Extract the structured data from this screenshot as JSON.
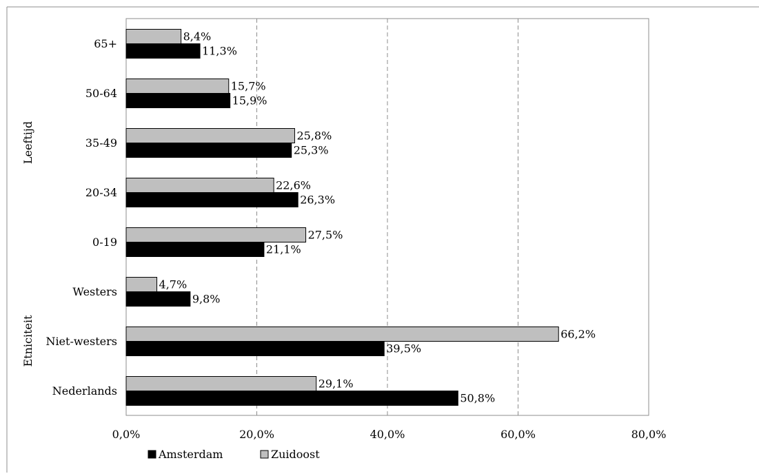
{
  "chart_data": {
    "type": "bar",
    "orientation": "horizontal",
    "groups": [
      {
        "label": "Leeftijd",
        "categories": [
          "65+",
          "50-64",
          "35-49",
          "20-34",
          "0-19"
        ]
      },
      {
        "label": "Etniciteit",
        "categories": [
          "Westers",
          "Niet-westers",
          "Nederlands"
        ]
      }
    ],
    "categories": [
      "65+",
      "50-64",
      "35-49",
      "20-34",
      "0-19",
      "Westers",
      "Niet-westers",
      "Nederlands"
    ],
    "series": [
      {
        "name": "Zuidoost",
        "color": "#bfbfbf",
        "values": [
          8.4,
          15.7,
          25.8,
          22.6,
          27.5,
          4.7,
          66.2,
          29.1
        ],
        "labels": [
          "8,4%",
          "15,7%",
          "25,8%",
          "22,6%",
          "27,5%",
          "4,7%",
          "66,2%",
          "29,1%"
        ]
      },
      {
        "name": "Amsterdam",
        "color": "#000000",
        "values": [
          11.3,
          15.9,
          25.3,
          26.3,
          21.1,
          9.8,
          39.5,
          50.8
        ],
        "labels": [
          "11,3%",
          "15,9%",
          "25,3%",
          "26,3%",
          "21,1%",
          "9,8%",
          "39,5%",
          "50,8%"
        ]
      }
    ],
    "xlim": [
      0,
      80
    ],
    "xticks": [
      0,
      20,
      40,
      60,
      80
    ],
    "xtick_labels": [
      "0,0%",
      "20,0%",
      "40,0%",
      "60,0%",
      "80,0%"
    ],
    "grid": "vertical dashed",
    "legend": {
      "placement": "bottom-left",
      "entries": [
        {
          "name": "Amsterdam",
          "color": "#000000"
        },
        {
          "name": "Zuidoost",
          "color": "#bfbfbf"
        }
      ]
    }
  }
}
